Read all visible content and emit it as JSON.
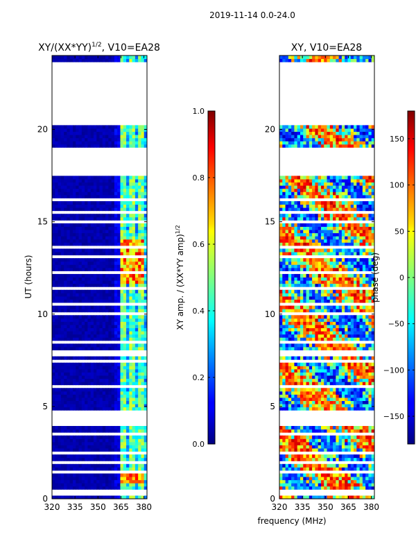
{
  "figure": {
    "suptitle": "2019-11-14 0.0-24.0",
    "xlabel_shared": "frequency (MHz)"
  },
  "chart_data": [
    {
      "type": "heatmap",
      "title_main": "XY/(XX*YY)",
      "title_sup": "1/2",
      "title_tail": ", V10=EA28",
      "ylabel": "UT (hours)",
      "xlim": [
        320,
        382
      ],
      "ylim": [
        0,
        24
      ],
      "xticks": [
        320,
        335,
        350,
        365,
        380
      ],
      "yticks": [
        0,
        5,
        10,
        15,
        20
      ],
      "colorbar": {
        "label_main": "XY amp. / (XX*YY amp)",
        "label_sup": "1/2",
        "range": [
          0.0,
          1.0
        ],
        "ticks": [
          "0.0",
          "0.2",
          "0.4",
          "0.6",
          "0.8",
          "1.0"
        ],
        "colormap": "jet"
      }
    },
    {
      "type": "heatmap",
      "title": "XY, V10=EA28",
      "xlim": [
        320,
        382
      ],
      "ylim": [
        0,
        24
      ],
      "xticks": [
        320,
        335,
        350,
        365,
        380
      ],
      "yticks": [
        0,
        5,
        10,
        15,
        20
      ],
      "colorbar": {
        "label": "phase (deg)",
        "range": [
          -180,
          180
        ],
        "ticks": [
          -150,
          -100,
          -50,
          0,
          50,
          100,
          150
        ],
        "tick_labels": [
          "−150",
          "−100",
          "−50",
          "0",
          "50",
          "100",
          "150"
        ],
        "colormap": "jet"
      }
    }
  ],
  "colors": {
    "background": "#ffffff",
    "axis": "#000000",
    "low_amp": "#00008f"
  }
}
